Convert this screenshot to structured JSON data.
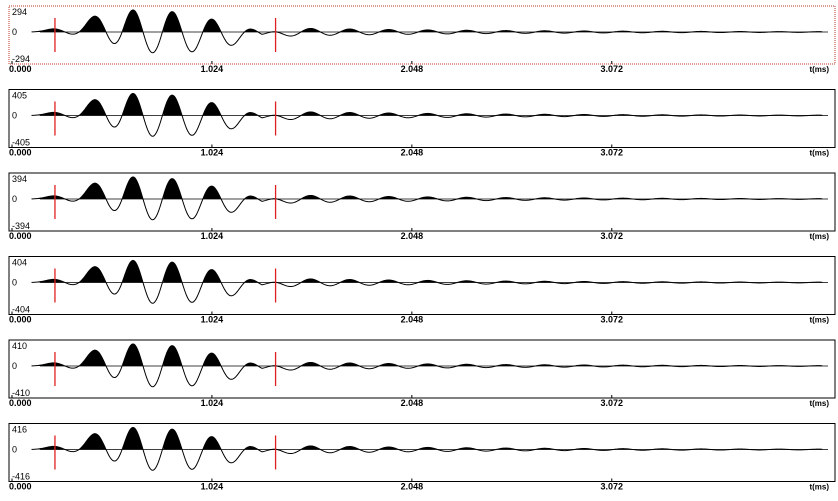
{
  "chart_data": [
    {
      "type": "line",
      "selected": true,
      "ytick_labels": [
        "294",
        "0",
        "-294"
      ],
      "ylim": [
        -294,
        294
      ],
      "xlim": [
        0,
        4.2
      ],
      "xtick_labels": [
        "0.000",
        "1.024",
        "2.048",
        "3.072"
      ],
      "xticks": [
        0,
        1.024,
        2.048,
        3.072
      ],
      "unit_label": "t(ms)",
      "markers_ms": [
        0.22,
        1.35
      ],
      "fill_positive": true,
      "peak_amplitude": 280,
      "pulse_peaks_ms": [
        0.22,
        0.43,
        0.62,
        0.82,
        1.02,
        1.21
      ],
      "pulse_amplitudes": [
        0.12,
        0.62,
        0.95,
        0.88,
        0.58,
        0.18
      ]
    },
    {
      "type": "line",
      "selected": false,
      "ytick_labels": [
        "405",
        "0",
        "-405"
      ],
      "ylim": [
        -405,
        405
      ],
      "xlim": [
        0,
        4.2
      ],
      "xtick_labels": [
        "0.000",
        "1.024",
        "2.048",
        "3.072"
      ],
      "xticks": [
        0,
        1.024,
        2.048,
        3.072
      ],
      "unit_label": "t(ms)",
      "markers_ms": [
        0.22,
        1.35
      ],
      "fill_positive": true,
      "peak_amplitude": 390
    },
    {
      "type": "line",
      "selected": false,
      "ytick_labels": [
        "394",
        "0",
        "-394"
      ],
      "ylim": [
        -394,
        394
      ],
      "xlim": [
        0,
        4.2
      ],
      "xtick_labels": [
        "0.000",
        "1.024",
        "2.048",
        "3.072"
      ],
      "xticks": [
        0,
        1.024,
        2.048,
        3.072
      ],
      "unit_label": "t(ms)",
      "markers_ms": [
        0.22,
        1.35
      ],
      "fill_positive": true,
      "peak_amplitude": 380
    },
    {
      "type": "line",
      "selected": false,
      "ytick_labels": [
        "404",
        "0",
        "-404"
      ],
      "ylim": [
        -404,
        404
      ],
      "xlim": [
        0,
        4.2
      ],
      "xtick_labels": [
        "0.000",
        "1.024",
        "2.048",
        "3.072"
      ],
      "xticks": [
        0,
        1.024,
        2.048,
        3.072
      ],
      "unit_label": "t(ms)",
      "markers_ms": [
        0.22,
        1.35
      ],
      "fill_positive": true,
      "peak_amplitude": 390
    },
    {
      "type": "line",
      "selected": false,
      "ytick_labels": [
        "410",
        "0",
        "-410"
      ],
      "ylim": [
        -410,
        410
      ],
      "xlim": [
        0,
        4.2
      ],
      "xtick_labels": [
        "0.000",
        "1.024",
        "2.048",
        "3.072"
      ],
      "xticks": [
        0,
        1.024,
        2.048,
        3.072
      ],
      "unit_label": "t(ms)",
      "markers_ms": [
        0.22,
        1.35
      ],
      "fill_positive": true,
      "peak_amplitude": 395
    },
    {
      "type": "line",
      "selected": false,
      "ytick_labels": [
        "416",
        "0",
        "-416"
      ],
      "ylim": [
        -416,
        416
      ],
      "xlim": [
        0,
        4.2
      ],
      "xtick_labels": [
        "0.000",
        "1.024",
        "2.048",
        "3.072"
      ],
      "xticks": [
        0,
        1.024,
        2.048,
        3.072
      ],
      "unit_label": "t(ms)",
      "markers_ms": [
        0.22,
        1.35
      ],
      "fill_positive": true,
      "peak_amplitude": 400
    }
  ]
}
